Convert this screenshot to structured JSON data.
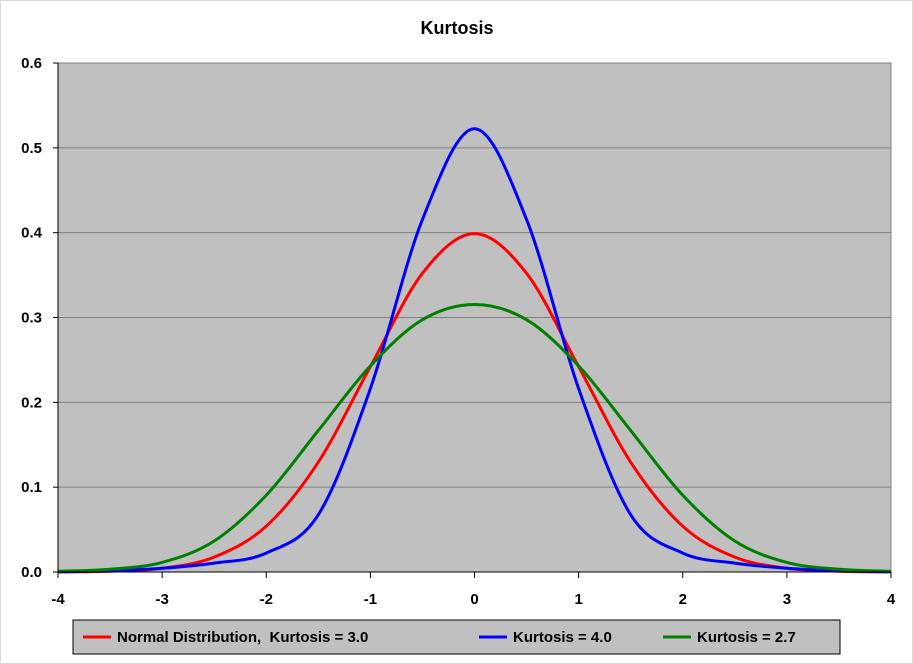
{
  "chart_data": {
    "type": "line",
    "title": "Kurtosis",
    "xlabel": "",
    "ylabel": "",
    "xlim": [
      -4,
      4
    ],
    "ylim": [
      0,
      0.6
    ],
    "x_ticks": [
      "-4",
      "-3",
      "-2",
      "-1",
      "0",
      "1",
      "2",
      "3",
      "4"
    ],
    "y_ticks": [
      "0.0",
      "0.1",
      "0.2",
      "0.3",
      "0.4",
      "0.5",
      "0.6"
    ],
    "grid": true,
    "plot_background": "#c0c0c0",
    "legend_position": "bottom",
    "series": [
      {
        "name": "Normal Distribution,  Kurtosis = 3.0",
        "color": "#ff0000",
        "x": [
          -4,
          -3.5,
          -3,
          -2.5,
          -2,
          -1.5,
          -1,
          -0.5,
          0,
          0.5,
          1,
          1.5,
          2,
          2.5,
          3,
          3.5,
          4
        ],
        "y": [
          0.0001,
          0.0009,
          0.0044,
          0.0175,
          0.054,
          0.1295,
          0.242,
          0.3521,
          0.3989,
          0.3521,
          0.242,
          0.1295,
          0.054,
          0.0175,
          0.0044,
          0.0009,
          0.0001
        ]
      },
      {
        "name": "Kurtosis = 4.0",
        "color": "#0000ff",
        "x": [
          -4,
          -3.5,
          -3,
          -2.5,
          -2,
          -1.5,
          -1,
          -0.5,
          0,
          0.5,
          1,
          1.5,
          2,
          2.5,
          3,
          3.5,
          4
        ],
        "y": [
          0.0003,
          0.0015,
          0.0044,
          0.0105,
          0.0223,
          0.0675,
          0.2162,
          0.4154,
          0.5225,
          0.4154,
          0.2162,
          0.0675,
          0.0223,
          0.0105,
          0.0044,
          0.0015,
          0.0003
        ]
      },
      {
        "name": "Kurtosis = 2.7",
        "color": "#008000",
        "x": [
          -4,
          -3.5,
          -3,
          -2.5,
          -2,
          -1.5,
          -1,
          -0.5,
          0,
          0.5,
          1,
          1.5,
          2,
          2.5,
          3,
          3.5,
          4
        ],
        "y": [
          0.0008,
          0.0033,
          0.0113,
          0.0365,
          0.0905,
          0.1668,
          0.2429,
          0.2974,
          0.3154,
          0.2974,
          0.2429,
          0.1668,
          0.0905,
          0.0365,
          0.0113,
          0.0033,
          0.0008
        ]
      }
    ]
  }
}
